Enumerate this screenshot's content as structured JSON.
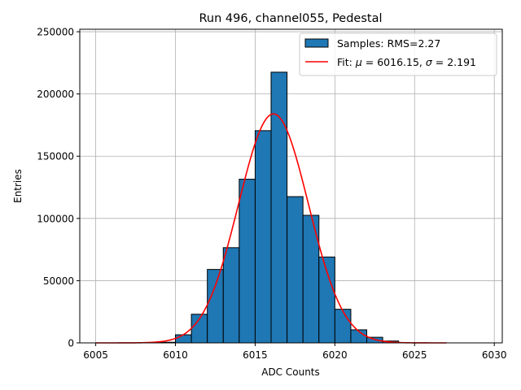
{
  "chart_data": {
    "type": "bar",
    "title": "Run 496, channel055, Pedestal",
    "xlabel": "ADC Counts",
    "ylabel": "Entries",
    "xlim": [
      6004,
      6030.5
    ],
    "ylim": [
      0,
      252000
    ],
    "xticks": [
      6005,
      6010,
      6015,
      6020,
      6025,
      6030
    ],
    "yticks": [
      0,
      50000,
      100000,
      150000,
      200000,
      250000
    ],
    "grid": true,
    "legend_position": "top-right",
    "series": [
      {
        "name": "Samples: RMS=2.27",
        "kind": "histogram",
        "bin_width": 1,
        "bin_starts": [
          6009,
          6010,
          6011,
          6012,
          6013,
          6014,
          6015,
          6016,
          6017,
          6018,
          6019,
          6020,
          6021,
          6022,
          6023
        ],
        "values": [
          500,
          6500,
          23000,
          59000,
          76500,
          131500,
          170500,
          217500,
          117500,
          102500,
          69000,
          27000,
          10500,
          4500,
          1500
        ],
        "color": "#1f77b4",
        "edge_color": "#000000"
      },
      {
        "name": "Fit: μ = 6016.15, σ = 2.191",
        "kind": "gaussian_fit",
        "mu": 6016.15,
        "sigma": 2.191,
        "amplitude": 184000,
        "x_range": [
          6005,
          6027
        ],
        "color": "#ff0000"
      }
    ],
    "legend_entries": [
      {
        "label_prefix": "Samples: RMS=2.27"
      },
      {
        "label_prefix": "Fit: ",
        "mu_symbol": "μ",
        "mu_text": " = 6016.15, ",
        "sigma_symbol": "σ",
        "sigma_text": " = 2.191"
      }
    ]
  }
}
